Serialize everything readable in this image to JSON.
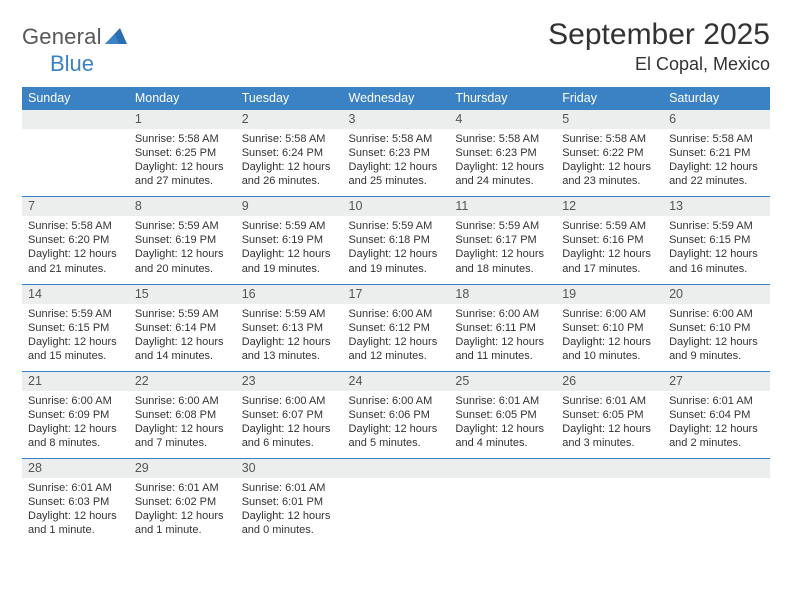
{
  "logo": {
    "part1": "General",
    "part2": "Blue"
  },
  "title": "September 2025",
  "location": "El Copal, Mexico",
  "colors": {
    "header_bg": "#3b82c4",
    "header_text": "#ffffff",
    "daynum_bg": "#eceded",
    "row_border": "#3b82c4",
    "logo_gray": "#57585a",
    "logo_blue": "#3b82c4",
    "body_text": "#333333",
    "page_bg": "#ffffff"
  },
  "day_headers": [
    "Sunday",
    "Monday",
    "Tuesday",
    "Wednesday",
    "Thursday",
    "Friday",
    "Saturday"
  ],
  "weeks": [
    [
      null,
      {
        "n": "1",
        "sr": "5:58 AM",
        "ss": "6:25 PM",
        "dl": "12 hours and 27 minutes."
      },
      {
        "n": "2",
        "sr": "5:58 AM",
        "ss": "6:24 PM",
        "dl": "12 hours and 26 minutes."
      },
      {
        "n": "3",
        "sr": "5:58 AM",
        "ss": "6:23 PM",
        "dl": "12 hours and 25 minutes."
      },
      {
        "n": "4",
        "sr": "5:58 AM",
        "ss": "6:23 PM",
        "dl": "12 hours and 24 minutes."
      },
      {
        "n": "5",
        "sr": "5:58 AM",
        "ss": "6:22 PM",
        "dl": "12 hours and 23 minutes."
      },
      {
        "n": "6",
        "sr": "5:58 AM",
        "ss": "6:21 PM",
        "dl": "12 hours and 22 minutes."
      }
    ],
    [
      {
        "n": "7",
        "sr": "5:58 AM",
        "ss": "6:20 PM",
        "dl": "12 hours and 21 minutes."
      },
      {
        "n": "8",
        "sr": "5:59 AM",
        "ss": "6:19 PM",
        "dl": "12 hours and 20 minutes."
      },
      {
        "n": "9",
        "sr": "5:59 AM",
        "ss": "6:19 PM",
        "dl": "12 hours and 19 minutes."
      },
      {
        "n": "10",
        "sr": "5:59 AM",
        "ss": "6:18 PM",
        "dl": "12 hours and 19 minutes."
      },
      {
        "n": "11",
        "sr": "5:59 AM",
        "ss": "6:17 PM",
        "dl": "12 hours and 18 minutes."
      },
      {
        "n": "12",
        "sr": "5:59 AM",
        "ss": "6:16 PM",
        "dl": "12 hours and 17 minutes."
      },
      {
        "n": "13",
        "sr": "5:59 AM",
        "ss": "6:15 PM",
        "dl": "12 hours and 16 minutes."
      }
    ],
    [
      {
        "n": "14",
        "sr": "5:59 AM",
        "ss": "6:15 PM",
        "dl": "12 hours and 15 minutes."
      },
      {
        "n": "15",
        "sr": "5:59 AM",
        "ss": "6:14 PM",
        "dl": "12 hours and 14 minutes."
      },
      {
        "n": "16",
        "sr": "5:59 AM",
        "ss": "6:13 PM",
        "dl": "12 hours and 13 minutes."
      },
      {
        "n": "17",
        "sr": "6:00 AM",
        "ss": "6:12 PM",
        "dl": "12 hours and 12 minutes."
      },
      {
        "n": "18",
        "sr": "6:00 AM",
        "ss": "6:11 PM",
        "dl": "12 hours and 11 minutes."
      },
      {
        "n": "19",
        "sr": "6:00 AM",
        "ss": "6:10 PM",
        "dl": "12 hours and 10 minutes."
      },
      {
        "n": "20",
        "sr": "6:00 AM",
        "ss": "6:10 PM",
        "dl": "12 hours and 9 minutes."
      }
    ],
    [
      {
        "n": "21",
        "sr": "6:00 AM",
        "ss": "6:09 PM",
        "dl": "12 hours and 8 minutes."
      },
      {
        "n": "22",
        "sr": "6:00 AM",
        "ss": "6:08 PM",
        "dl": "12 hours and 7 minutes."
      },
      {
        "n": "23",
        "sr": "6:00 AM",
        "ss": "6:07 PM",
        "dl": "12 hours and 6 minutes."
      },
      {
        "n": "24",
        "sr": "6:00 AM",
        "ss": "6:06 PM",
        "dl": "12 hours and 5 minutes."
      },
      {
        "n": "25",
        "sr": "6:01 AM",
        "ss": "6:05 PM",
        "dl": "12 hours and 4 minutes."
      },
      {
        "n": "26",
        "sr": "6:01 AM",
        "ss": "6:05 PM",
        "dl": "12 hours and 3 minutes."
      },
      {
        "n": "27",
        "sr": "6:01 AM",
        "ss": "6:04 PM",
        "dl": "12 hours and 2 minutes."
      }
    ],
    [
      {
        "n": "28",
        "sr": "6:01 AM",
        "ss": "6:03 PM",
        "dl": "12 hours and 1 minute."
      },
      {
        "n": "29",
        "sr": "6:01 AM",
        "ss": "6:02 PM",
        "dl": "12 hours and 1 minute."
      },
      {
        "n": "30",
        "sr": "6:01 AM",
        "ss": "6:01 PM",
        "dl": "12 hours and 0 minutes."
      },
      null,
      null,
      null,
      null
    ]
  ],
  "labels": {
    "sunrise": "Sunrise:",
    "sunset": "Sunset:",
    "daylight": "Daylight:"
  }
}
